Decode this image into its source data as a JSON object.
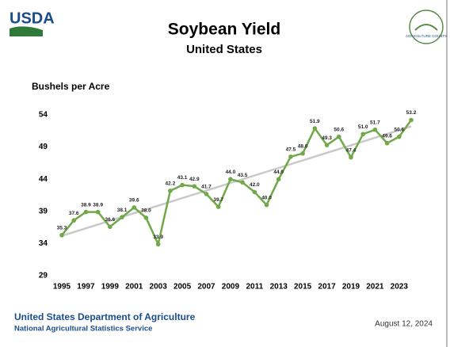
{
  "header": {
    "logo": "USDA",
    "badge": "AGRICULTURE COUNTS"
  },
  "chart_data": {
    "type": "line",
    "title": "Soybean Yield",
    "subtitle": "United States",
    "ylabel": "Bushels per Acre",
    "x": [
      1995,
      1996,
      1997,
      1998,
      1999,
      2000,
      2001,
      2002,
      2003,
      2004,
      2005,
      2006,
      2007,
      2008,
      2009,
      2010,
      2011,
      2012,
      2013,
      2014,
      2015,
      2016,
      2017,
      2018,
      2019,
      2020,
      2021,
      2022,
      2023,
      2024
    ],
    "series": [
      {
        "color": "#70a84a",
        "values": [
          35.3,
          37.6,
          38.9,
          38.9,
          36.6,
          38.1,
          39.6,
          38.0,
          33.9,
          42.2,
          43.1,
          42.9,
          41.7,
          39.7,
          44.0,
          43.5,
          42.0,
          40.0,
          44.0,
          47.5,
          48.0,
          51.9,
          49.3,
          50.6,
          47.4,
          51.0,
          51.7,
          49.6,
          50.6,
          53.2
        ],
        "value_labels": [
          "35.3",
          "37.6",
          "38.9",
          "38.9",
          "36.6",
          "38.1",
          "39.6",
          "38.0",
          "33.9",
          "42.2",
          "43.1",
          "42.9",
          "41.7",
          "39.7",
          "44.0",
          "43.5",
          "42.0",
          "40.0",
          "44.0",
          "47.5",
          "48.0",
          "51.9",
          "49.3",
          "50.6",
          "47.4",
          "51.0",
          "51.7",
          "49.6",
          "50.6",
          "53.2"
        ]
      }
    ],
    "trend": {
      "x": [
        1995,
        2024
      ],
      "values": [
        35.2,
        52.2
      ],
      "color": "#c9c9c9"
    },
    "xlim": [
      1995,
      2024
    ],
    "xticks": [
      1995,
      1997,
      1999,
      2001,
      2003,
      2005,
      2007,
      2009,
      2011,
      2013,
      2015,
      2017,
      2019,
      2021,
      2023
    ],
    "ylim": [
      29,
      54
    ],
    "yticks": [
      29,
      34,
      39,
      44,
      49,
      54
    ],
    "grid": false
  },
  "footer": {
    "org": "United States Department of Agriculture",
    "service": "National Agricultural Statistics Service",
    "date": "August 12, 2024"
  }
}
